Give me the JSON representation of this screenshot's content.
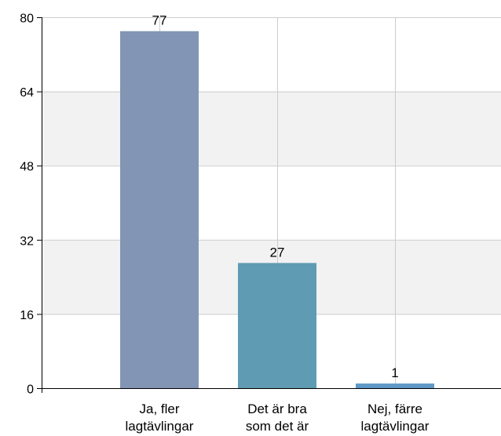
{
  "chart_data": {
    "type": "bar",
    "categories": [
      [
        "Ja, fler",
        "lagtävlingar"
      ],
      [
        "Det är bra",
        "som det är"
      ],
      [
        "Nej, färre",
        "lagtävlingar"
      ]
    ],
    "values": [
      77,
      27,
      1
    ],
    "value_labels": [
      "77",
      "27",
      "1"
    ],
    "bar_colors": [
      "#8395b5",
      "#5f9cb3",
      "#5f99c7"
    ],
    "ylim": [
      0,
      80
    ],
    "yticks": [
      0,
      16,
      32,
      48,
      64,
      80
    ],
    "ytick_labels": [
      "0",
      "16",
      "32",
      "48",
      "64",
      "80"
    ],
    "grid": true,
    "band_color": "#f2f2f2",
    "grid_color": "#cccccc",
    "axis_color": "#000000"
  }
}
